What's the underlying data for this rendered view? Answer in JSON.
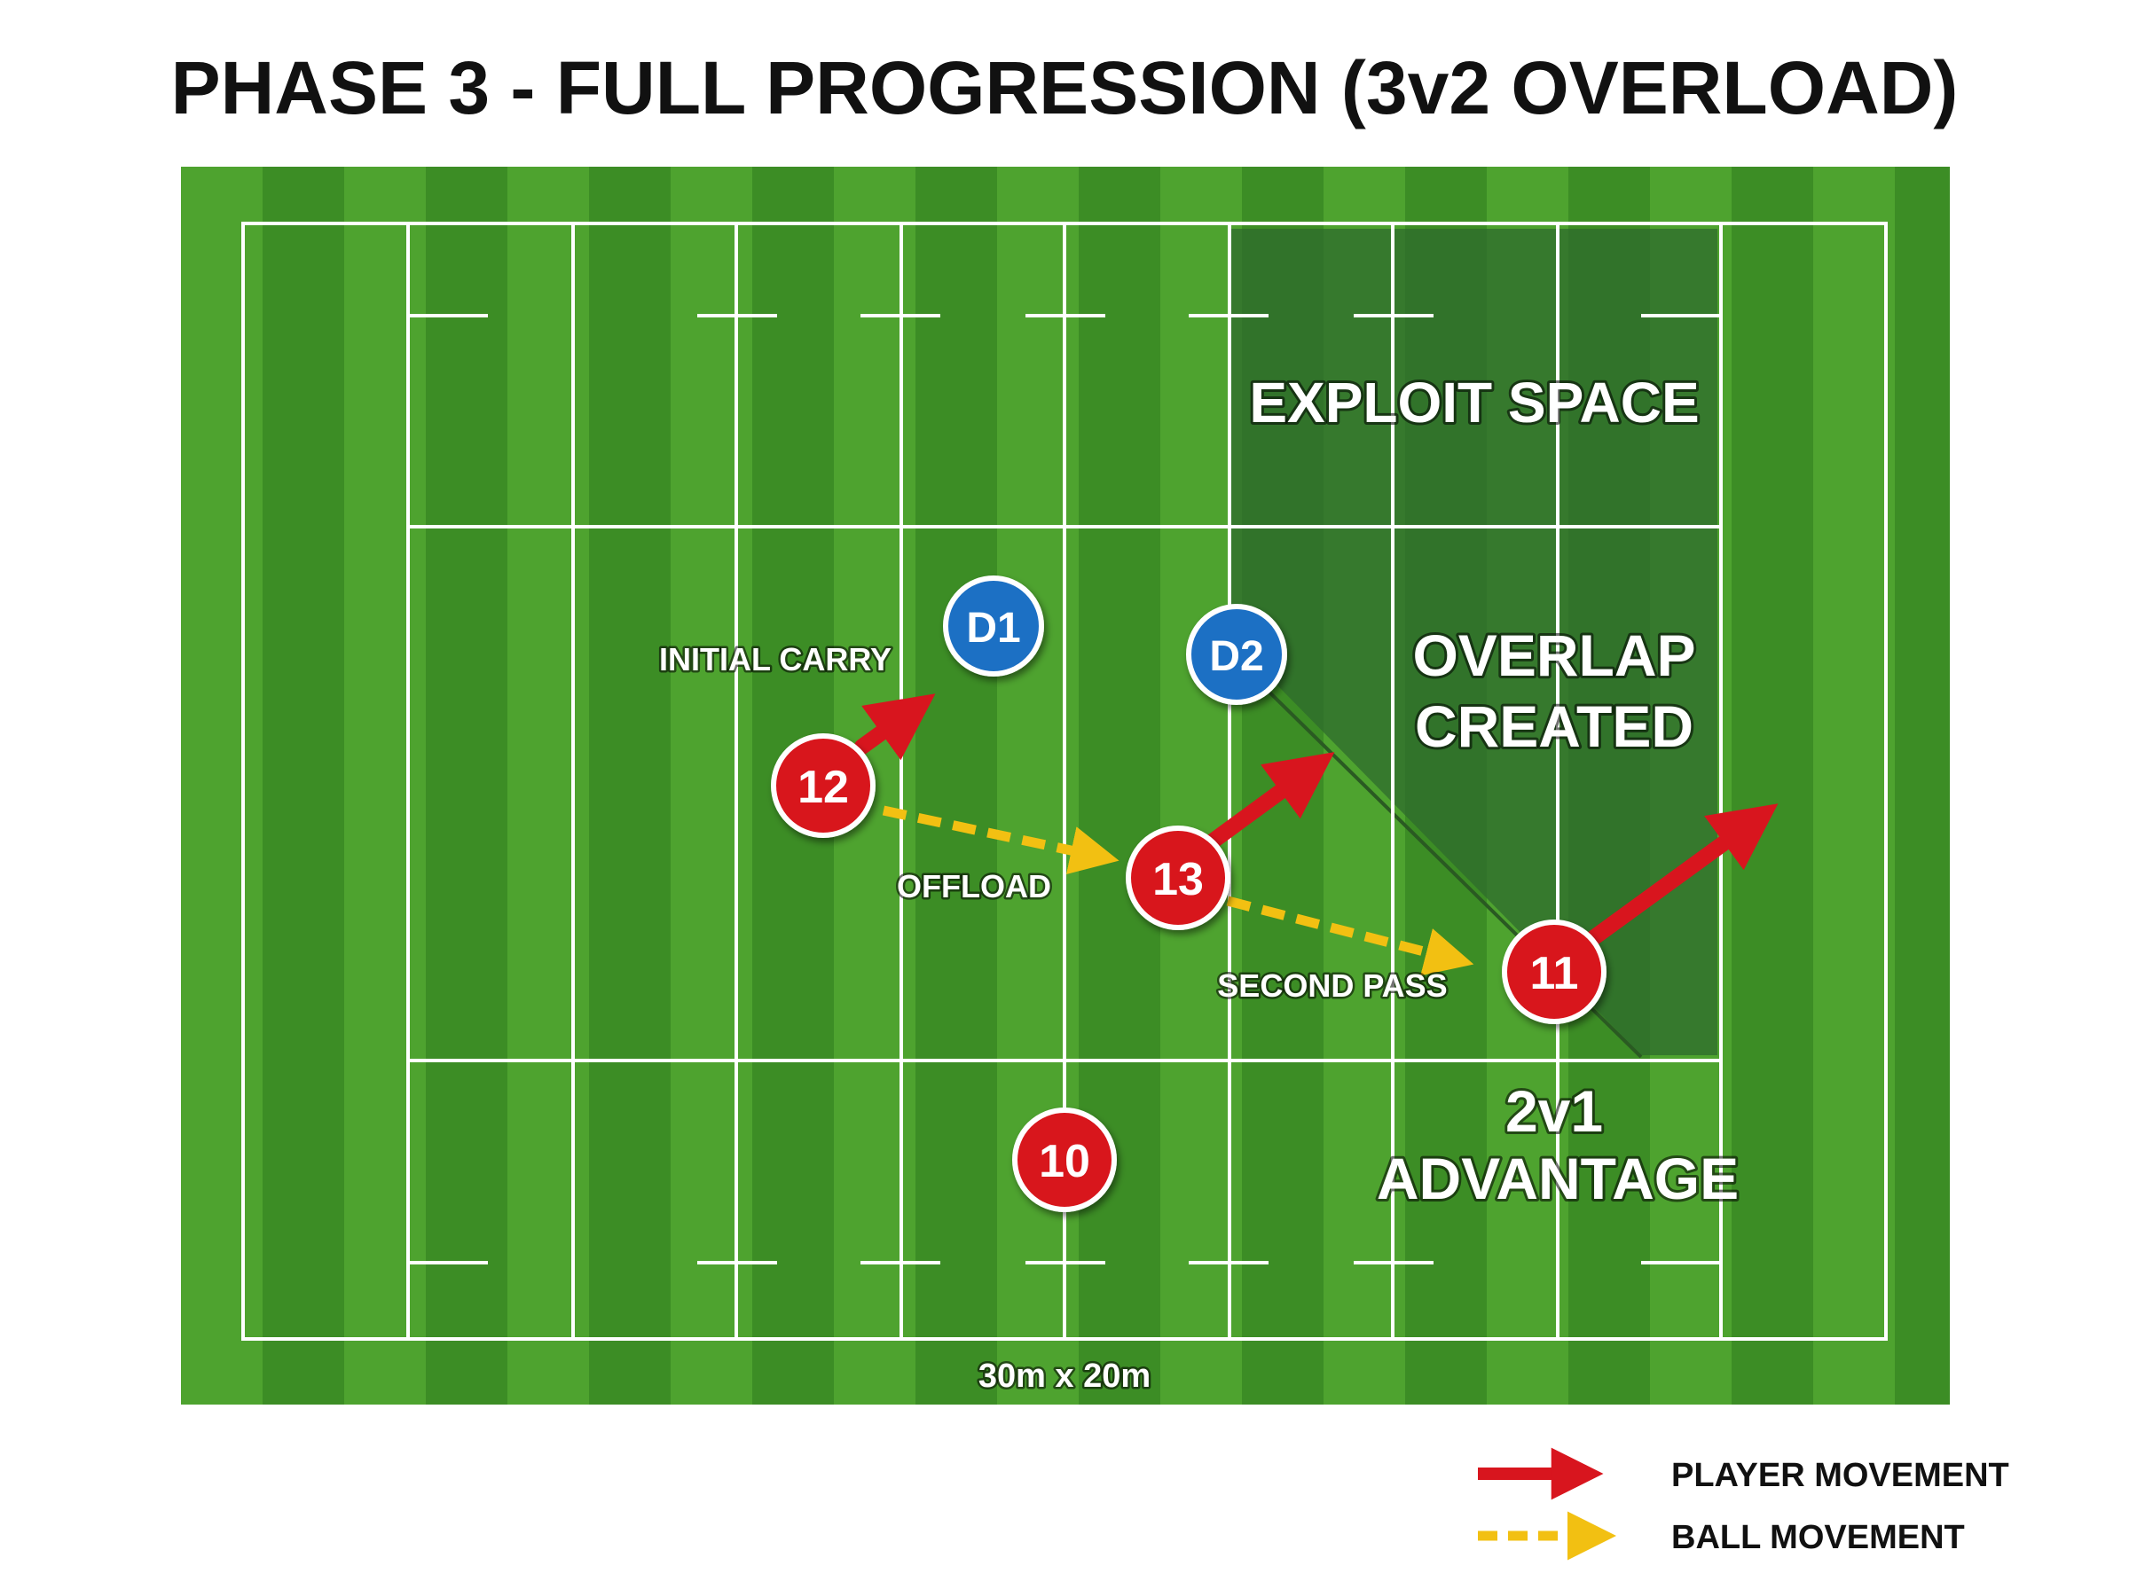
{
  "title": "PHASE 3 - FULL PROGRESSION (3v2 OVERLOAD)",
  "pitch": {
    "dimensions_label": "30m x 20m",
    "grass_light": "#4ea32f",
    "grass_dark": "#3a8a23",
    "line_color": "#ffffff"
  },
  "zones": {
    "exploit_space": "EXPLOIT SPACE",
    "overlap_line1": "OVERLAP",
    "overlap_line2": "CREATED",
    "advantage_line1": "2v1",
    "advantage_line2": "ADVANTAGE"
  },
  "labels": {
    "initial_carry": "INITIAL CARRY",
    "offload": "OFFLOAD",
    "second_pass": "SECOND PASS"
  },
  "players": {
    "attackers": [
      "12",
      "13",
      "11",
      "10"
    ],
    "defenders": [
      "D1",
      "D2"
    ],
    "attacker_color": "#d8151e",
    "defender_color": "#1f6fc4"
  },
  "legend": {
    "player_movement": "PLAYER MOVEMENT",
    "ball_movement": "BALL MOVEMENT",
    "player_color": "#d8151e",
    "ball_color": "#f2c012"
  }
}
